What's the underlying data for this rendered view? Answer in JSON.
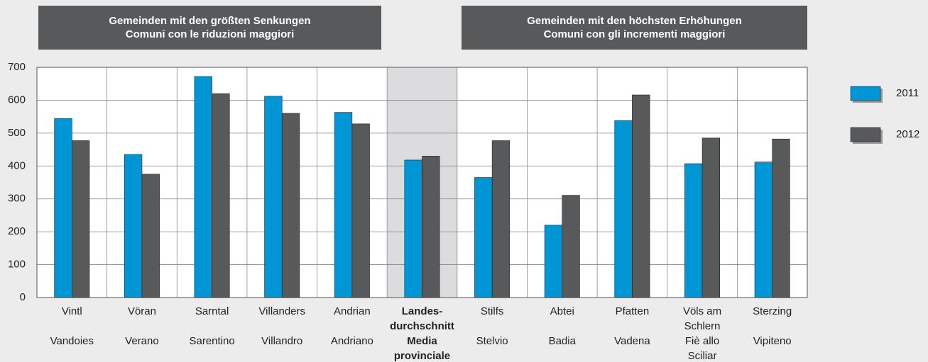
{
  "chart_data": {
    "type": "bar",
    "headers": [
      [
        "Gemeinden mit den größten Senkungen",
        "Comuni con le riduzioni maggiori"
      ],
      [
        "Gemeinden mit den höchsten Erhöhungen",
        "Comuni con gli incrementi maggiori"
      ]
    ],
    "categories": [
      {
        "de": [
          "Vintl"
        ],
        "it": [
          "Vandoies"
        ]
      },
      {
        "de": [
          "Vöran"
        ],
        "it": [
          "Verano"
        ]
      },
      {
        "de": [
          "Sarntal"
        ],
        "it": [
          "Sarentino"
        ]
      },
      {
        "de": [
          "Villanders"
        ],
        "it": [
          "Villandro"
        ]
      },
      {
        "de": [
          "Andrian"
        ],
        "it": [
          "Andriano"
        ]
      },
      {
        "de": [
          "Landes-",
          "durchschnitt"
        ],
        "it": [
          "Media",
          "provinciale"
        ]
      },
      {
        "de": [
          "Stilfs"
        ],
        "it": [
          "Stelvio"
        ]
      },
      {
        "de": [
          "Abtei"
        ],
        "it": [
          "Badia"
        ]
      },
      {
        "de": [
          "Pfatten"
        ],
        "it": [
          "Vadena"
        ]
      },
      {
        "de": [
          "Völs am",
          "Schlern"
        ],
        "it": [
          "Fiè allo",
          "Sciliar"
        ]
      },
      {
        "de": [
          "Sterzing"
        ],
        "it": [
          "Vipiteno"
        ]
      }
    ],
    "highlight_index": 5,
    "series": [
      {
        "name": "2011",
        "color": "#0096d6",
        "values": [
          544,
          435,
          672,
          612,
          563,
          418,
          365,
          220,
          538,
          407,
          412
        ]
      },
      {
        "name": "2012",
        "color": "#58595b",
        "values": [
          477,
          375,
          620,
          560,
          528,
          430,
          477,
          311,
          616,
          485,
          482
        ]
      }
    ],
    "ylim": [
      0,
      700
    ],
    "yticks": [
      0,
      100,
      200,
      300,
      400,
      500,
      600,
      700
    ],
    "grid": true,
    "legend": "right"
  }
}
